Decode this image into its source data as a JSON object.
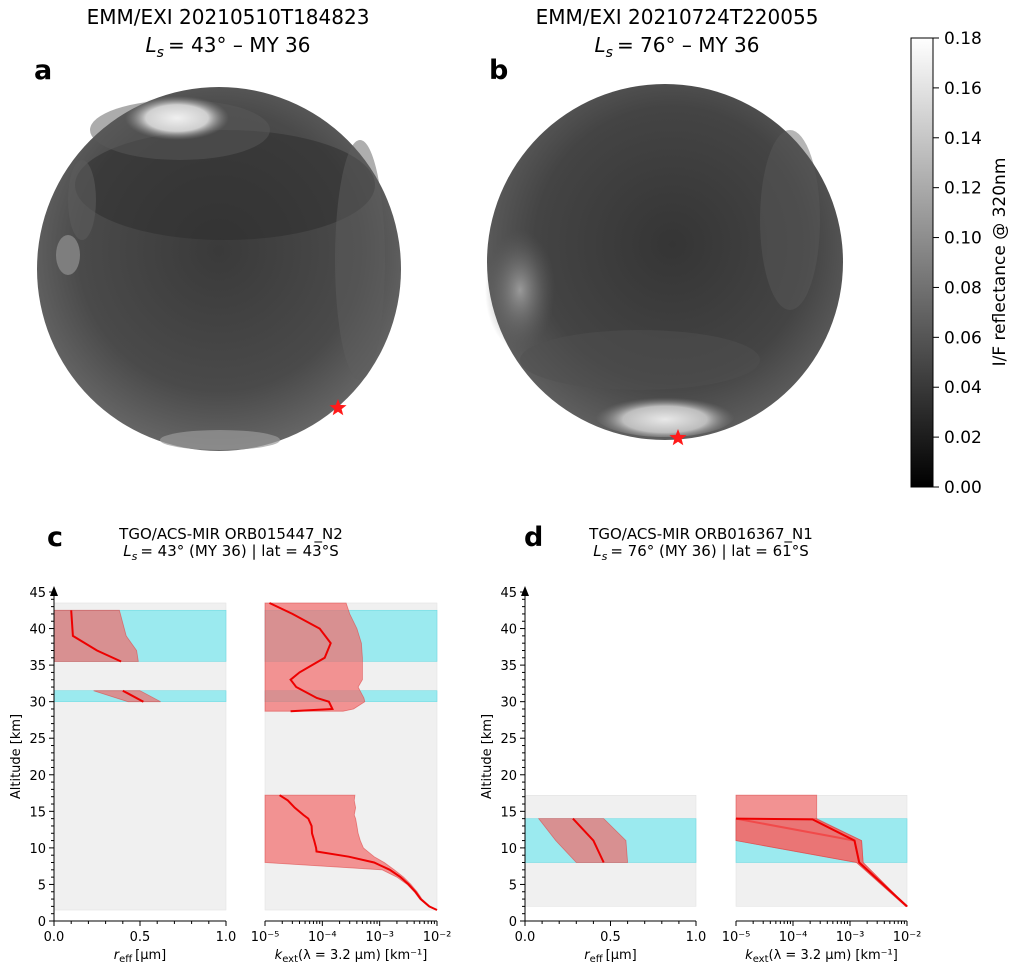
{
  "chart_data": [
    {
      "panel": "a",
      "type": "image",
      "title_line1": "EMM/EXI 20210510T184823",
      "title_ls": "= 43° – MY 36",
      "marker": "red star"
    },
    {
      "panel": "b",
      "type": "image",
      "title_line1": "EMM/EXI 20210724T220055",
      "title_ls": "= 76° – MY 36",
      "marker": "red star"
    },
    {
      "panel": "colorbar",
      "label": "I/F reflectance @ 320nm",
      "ticks": [
        "0.00",
        "0.02",
        "0.04",
        "0.06",
        "0.08",
        "0.10",
        "0.12",
        "0.14",
        "0.16",
        "0.18"
      ],
      "range": [
        0,
        0.18
      ]
    },
    {
      "panel": "c",
      "type": "line",
      "title_line1": "TGO/ACS-MIR ORB015447_N2",
      "title_ls": "= 43° (MY 36)  |  lat = 43°S",
      "ylabel": "Altitude [km]",
      "ylim": [
        0,
        45
      ],
      "yticks": [
        "0",
        "5",
        "10",
        "15",
        "20",
        "25",
        "30",
        "35",
        "40",
        "45"
      ],
      "gray_band": [
        1.5,
        43.5
      ],
      "cloud_layers": [
        [
          35.5,
          42.5
        ],
        [
          30.0,
          31.5
        ]
      ],
      "reff": {
        "xlabel_main": "r",
        "xlabel_sub": "eff",
        "xlabel_unit": "[µm]",
        "xlim": [
          0,
          1
        ],
        "xticks": [
          "0.0",
          "0.5",
          "1.0"
        ],
        "profiles": [
          {
            "alt": [
              42.5,
              39.0,
              37.0,
              35.5
            ],
            "value": [
              0.1,
              0.11,
              0.25,
              0.39
            ],
            "lower": [
              0.0,
              0.0,
              0.0,
              0.0
            ],
            "upper": [
              0.38,
              0.42,
              0.48,
              0.49
            ]
          },
          {
            "alt": [
              31.5,
              30.0
            ],
            "value": [
              0.4,
              0.52
            ],
            "lower": [
              0.23,
              0.43
            ],
            "upper": [
              0.5,
              0.62
            ]
          }
        ]
      },
      "kext": {
        "xlabel_main": "k",
        "xlabel_sub": "ext",
        "xlabel_unit": "(λ = 3.2 µm) [km⁻¹]",
        "xscale": "log",
        "xlim": [
          1e-05,
          0.01
        ],
        "xticks": [
          "10⁻⁵",
          "10⁻⁴",
          "10⁻³",
          "10⁻²"
        ],
        "profiles": [
          {
            "alt": [
              43.5,
              42.0,
              40.0,
              38.0,
              36.0,
              34.0,
              33.0,
              32.0,
              30.5,
              30.0,
              29.0,
              28.7
            ],
            "value": [
              1.2e-05,
              3e-05,
              9e-05,
              0.00014,
              0.00011,
              4e-05,
              2.8e-05,
              3.5e-05,
              8e-05,
              0.00013,
              0.00015,
              2.8e-05
            ],
            "lower": [
              1e-05,
              1e-05,
              1e-05,
              1e-05,
              1e-05,
              1e-05,
              1e-05,
              1e-05,
              1e-05,
              1e-05,
              1e-05,
              1e-05
            ],
            "upper": [
              0.00026,
              0.0003,
              0.0004,
              0.00048,
              0.0005,
              0.0005,
              0.0005,
              0.00042,
              0.00053,
              0.00055,
              0.00035,
              0.00023
            ]
          },
          {
            "alt": [
              17.2,
              16.5,
              15.5,
              14.5,
              14.0,
              13.0,
              12.0,
              11.0,
              10.0,
              9.5,
              8.8,
              8.0,
              7.0,
              6.0,
              5.0,
              4.0,
              3.0,
              2.0,
              1.5
            ],
            "value": [
              1.8e-05,
              2.5e-05,
              3.3e-05,
              4.7e-05,
              5.7e-05,
              6.5e-05,
              6.6e-05,
              7.2e-05,
              7.8e-05,
              7.9e-05,
              0.00029,
              0.0008,
              0.0015,
              0.0023,
              0.0032,
              0.0042,
              0.0052,
              0.0073,
              0.01
            ],
            "lower": [
              1e-05,
              1e-05,
              1e-05,
              1e-05,
              1e-05,
              1e-05,
              1e-05,
              1e-05,
              1e-05,
              1e-05,
              1e-05,
              1e-05,
              0.0011,
              0.002,
              0.003,
              0.004,
              0.005,
              0.0071,
              0.01
            ],
            "upper": [
              0.00037,
              0.00036,
              0.00038,
              0.00036,
              0.00038,
              0.0004,
              0.00042,
              0.00046,
              0.00052,
              0.00062,
              0.0008,
              0.0012,
              0.0018,
              0.0026,
              0.0035,
              0.0045,
              0.0055,
              0.0076,
              0.01
            ]
          }
        ]
      }
    },
    {
      "panel": "d",
      "type": "line",
      "title_line1": "TGO/ACS-MIR ORB016367_N1",
      "title_ls": "= 76° (MY 36)  |  lat = 61°S",
      "ylabel": "Altitude [km]",
      "ylim": [
        0,
        45
      ],
      "yticks": [
        "0",
        "5",
        "10",
        "15",
        "20",
        "25",
        "30",
        "35",
        "40",
        "45"
      ],
      "gray_band": [
        2.0,
        17.2
      ],
      "cloud_layers": [
        [
          8.0,
          14.0
        ]
      ],
      "reff": {
        "xlabel_main": "r",
        "xlabel_sub": "eff",
        "xlabel_unit": "[µm]",
        "xlim": [
          0,
          1
        ],
        "xticks": [
          "0.0",
          "0.5",
          "1.0"
        ],
        "profiles": [
          {
            "alt": [
              14.0,
              11.0,
              8.0
            ],
            "value": [
              0.28,
              0.4,
              0.46
            ],
            "lower": [
              0.08,
              0.18,
              0.3
            ],
            "upper": [
              0.46,
              0.59,
              0.6
            ]
          }
        ]
      },
      "kext": {
        "xlabel_main": "k",
        "xlabel_sub": "ext",
        "xlabel_unit": "(λ = 3.2 µm) [km⁻¹]",
        "xscale": "log",
        "xlim": [
          1e-05,
          0.01
        ],
        "xticks": [
          "10⁻⁵",
          "10⁻⁴",
          "10⁻³",
          "10⁻²"
        ],
        "profiles": [
          {
            "alt": [
              17.2,
              14.0,
              11.0,
              8.0,
              2.0
            ],
            "value": [
              null,
              1e-05,
              0.0012,
              0.00145,
              0.01
            ],
            "lower": [
              1e-05,
              1e-05,
              1e-05,
              0.0013,
              0.0095
            ],
            "upper": [
              0.00026,
              0.00026,
              0.0016,
              0.0017,
              0.01
            ]
          },
          {
            "alt": [
              14.0,
              13.9,
              11.0,
              8.0,
              2.0
            ],
            "value": [
              1e-05,
              0.00022,
              0.0012,
              0.00145,
              0.01
            ],
            "lower": [
              1e-05,
              1e-05,
              1e-05,
              0.0013,
              0.0095
            ],
            "upper": [
              0.00026,
              0.00026,
              0.0016,
              0.0017,
              0.01
            ]
          }
        ]
      }
    }
  ]
}
